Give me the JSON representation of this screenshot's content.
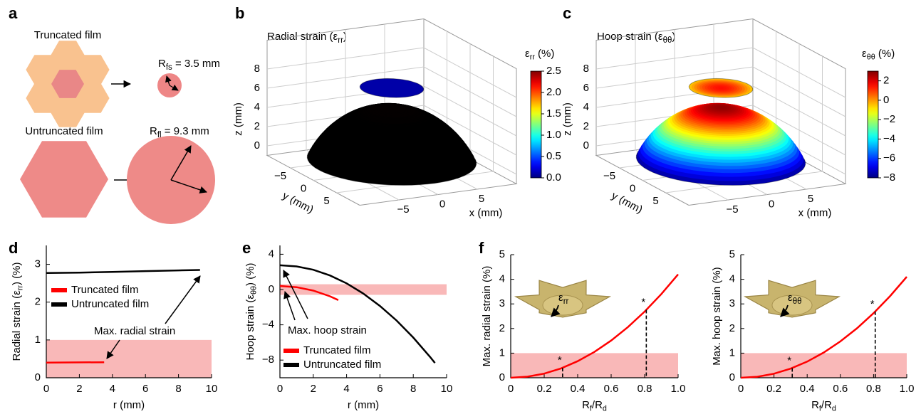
{
  "panel_labels": [
    "a",
    "b",
    "c",
    "d",
    "e",
    "f"
  ],
  "diagram_a": {
    "truncated_label": "Truncated film",
    "truncated_radius": [
      "R",
      "fs",
      " = 3.5 mm"
    ],
    "untruncated_label": "Untruncated film",
    "untruncated_radius": [
      "R",
      "fl",
      " = 9.3 mm"
    ]
  },
  "chart_data": [
    {
      "type": "surface3d",
      "title": [
        "Radial strain (ε",
        "rr",
        ")"
      ],
      "xlabel": "x (mm)",
      "ylabel": "y (mm)",
      "zlabel": "z (mm)",
      "xlim": [
        -10,
        10
      ],
      "ylim": [
        -10,
        10
      ],
      "zlim": [
        -1,
        11
      ],
      "xticks": [
        {
          "value": -5,
          "label": "−5"
        },
        0,
        5
      ],
      "yticks": [
        {
          "value": -5,
          "label": "−5"
        },
        0,
        5
      ],
      "zticks": [
        0,
        2,
        4,
        6,
        8
      ],
      "colorbar": {
        "label": [
          "ε",
          "rr",
          " (%)"
        ],
        "lim": [
          0,
          2.5
        ],
        "colormap": "jet",
        "ticks": [
          {
            "value": 0,
            "label": "0.0"
          },
          0.5,
          {
            "value": 1,
            "label": "1.0"
          },
          1.5,
          {
            "value": 2,
            "label": "2.0"
          },
          2.5
        ]
      },
      "surfaces": [
        {
          "radius": 9.3,
          "z": 0,
          "height": 5.5,
          "strain": [
            2.8,
            2.85
          ]
        },
        {
          "radius": 3.5,
          "z": 7.5,
          "height": 0,
          "strain": [
            0.1,
            0.1
          ]
        }
      ]
    },
    {
      "type": "surface3d",
      "title": [
        "Hoop strain (ε",
        "θθ",
        ")"
      ],
      "xlabel": "x (mm)",
      "ylabel": "y (mm)",
      "zlabel": "z (mm)",
      "xlim": [
        -10,
        10
      ],
      "ylim": [
        -10,
        10
      ],
      "zlim": [
        -1,
        11
      ],
      "xticks": [
        {
          "value": -5,
          "label": "−5"
        },
        0,
        5
      ],
      "yticks": [
        {
          "value": -5,
          "label": "−5"
        },
        0,
        5
      ],
      "zticks": [
        0,
        2,
        4,
        6,
        8
      ],
      "colorbar": {
        "label": [
          "ε",
          "θθ",
          " (%)"
        ],
        "lim": [
          -8,
          3
        ],
        "colormap": "jet",
        "ticks": [
          {
            "value": -8,
            "label": "−8"
          },
          {
            "value": -6,
            "label": "−6"
          },
          {
            "value": -4,
            "label": "−4"
          },
          {
            "value": -2,
            "label": "−2"
          },
          0,
          2
        ]
      },
      "surfaces": [
        {
          "radius": 9.3,
          "z": 0,
          "height": 5.5,
          "strain": [
            2.8,
            -7.5
          ]
        },
        {
          "radius": 3.5,
          "z": 7.5,
          "height": 0,
          "strain": [
            1.5,
            -0.5
          ]
        }
      ]
    },
    {
      "type": "line",
      "xlabel": "r (mm)",
      "ylabel": [
        "Radial strain (ε",
        "rr",
        ") (%)"
      ],
      "xlim": [
        0,
        10
      ],
      "ylim": [
        0,
        3.5
      ],
      "xticks": [
        0,
        2,
        4,
        6,
        8,
        10
      ],
      "yticks": [
        0,
        1,
        2,
        3
      ],
      "band": [
        0,
        1
      ],
      "band_color": "#f9b8b8",
      "annotation": "Max. radial strain",
      "series": [
        {
          "name": "Truncated film",
          "color": "#ff0000",
          "x": [
            0,
            3.5
          ],
          "values": [
            0.4,
            0.41
          ]
        },
        {
          "name": "Untruncated film",
          "color": "#000000",
          "x": [
            0,
            2,
            4,
            6,
            8,
            9.3
          ],
          "values": [
            2.77,
            2.78,
            2.8,
            2.82,
            2.84,
            2.85
          ]
        }
      ]
    },
    {
      "type": "line",
      "xlabel": "r (mm)",
      "ylabel": [
        "Hoop strain (ε",
        "θθ",
        ") (%)"
      ],
      "xlim": [
        0,
        10
      ],
      "ylim": [
        -10,
        5
      ],
      "xticks": [
        0,
        2,
        4,
        6,
        8,
        10
      ],
      "yticks": [
        {
          "value": -8,
          "label": "−8"
        },
        {
          "value": -4,
          "label": "−4"
        },
        0,
        4
      ],
      "band": [
        -0.6,
        0.6
      ],
      "band_color": "#f9b8b8",
      "annotation": "Max. hoop strain",
      "series": [
        {
          "name": "Truncated film",
          "color": "#ff0000",
          "x": [
            0,
            1,
            2,
            3,
            3.5
          ],
          "values": [
            0.4,
            0.27,
            -0.12,
            -0.77,
            -1.19
          ]
        },
        {
          "name": "Untruncated film",
          "color": "#000000",
          "x": [
            0,
            1,
            2,
            3,
            4,
            5,
            6,
            7,
            8,
            9,
            9.3
          ],
          "values": [
            2.75,
            2.62,
            2.24,
            1.6,
            0.7,
            -0.45,
            -1.86,
            -3.52,
            -5.44,
            -7.62,
            -8.32
          ]
        }
      ]
    },
    {
      "type": "line",
      "xlabel": [
        "R",
        "f",
        "/R",
        "d"
      ],
      "ylabel": "Max. radial strain (%)",
      "xlim": [
        0,
        1
      ],
      "ylim": [
        0,
        5
      ],
      "xticks": [
        0,
        0.2,
        0.4,
        0.6,
        0.8,
        {
          "value": 1,
          "label": "1.0"
        }
      ],
      "yticks": [
        0,
        1,
        2,
        3,
        4,
        5
      ],
      "band": [
        0,
        1
      ],
      "band_color": "#f9b8b8",
      "inset_label": [
        "ε",
        "rr"
      ],
      "highlights": {
        "label": "*",
        "x": [
          0.31,
          0.81
        ],
        "values": [
          0.4,
          2.76
        ]
      },
      "series": [
        {
          "color": "#ff0000",
          "x": [
            0,
            0.1,
            0.2,
            0.3,
            0.4,
            0.5,
            0.6,
            0.7,
            0.8,
            0.9,
            1.0
          ],
          "values": [
            0,
            0.042,
            0.168,
            0.378,
            0.672,
            1.05,
            1.512,
            2.058,
            2.688,
            3.402,
            4.2
          ]
        }
      ]
    },
    {
      "type": "line",
      "xlabel": [
        "R",
        "f",
        "/R",
        "d"
      ],
      "ylabel": "Max. hoop strain (%)",
      "xlim": [
        0,
        1
      ],
      "ylim": [
        0,
        5
      ],
      "xticks": [
        0,
        0.2,
        0.4,
        0.6,
        0.8,
        {
          "value": 1,
          "label": "1.0"
        }
      ],
      "yticks": [
        0,
        1,
        2,
        3,
        4,
        5
      ],
      "band": [
        0,
        1
      ],
      "band_color": "#f9b8b8",
      "inset_label": [
        "ε",
        "θθ"
      ],
      "highlights": {
        "label": "*",
        "x": [
          0.31,
          0.81
        ],
        "values": [
          0.39,
          2.69
        ]
      },
      "series": [
        {
          "color": "#ff0000",
          "x": [
            0,
            0.1,
            0.2,
            0.3,
            0.4,
            0.5,
            0.6,
            0.7,
            0.8,
            0.9,
            1.0
          ],
          "values": [
            0,
            0.041,
            0.164,
            0.369,
            0.656,
            1.025,
            1.476,
            2.009,
            2.624,
            3.321,
            4.1
          ]
        }
      ]
    }
  ]
}
